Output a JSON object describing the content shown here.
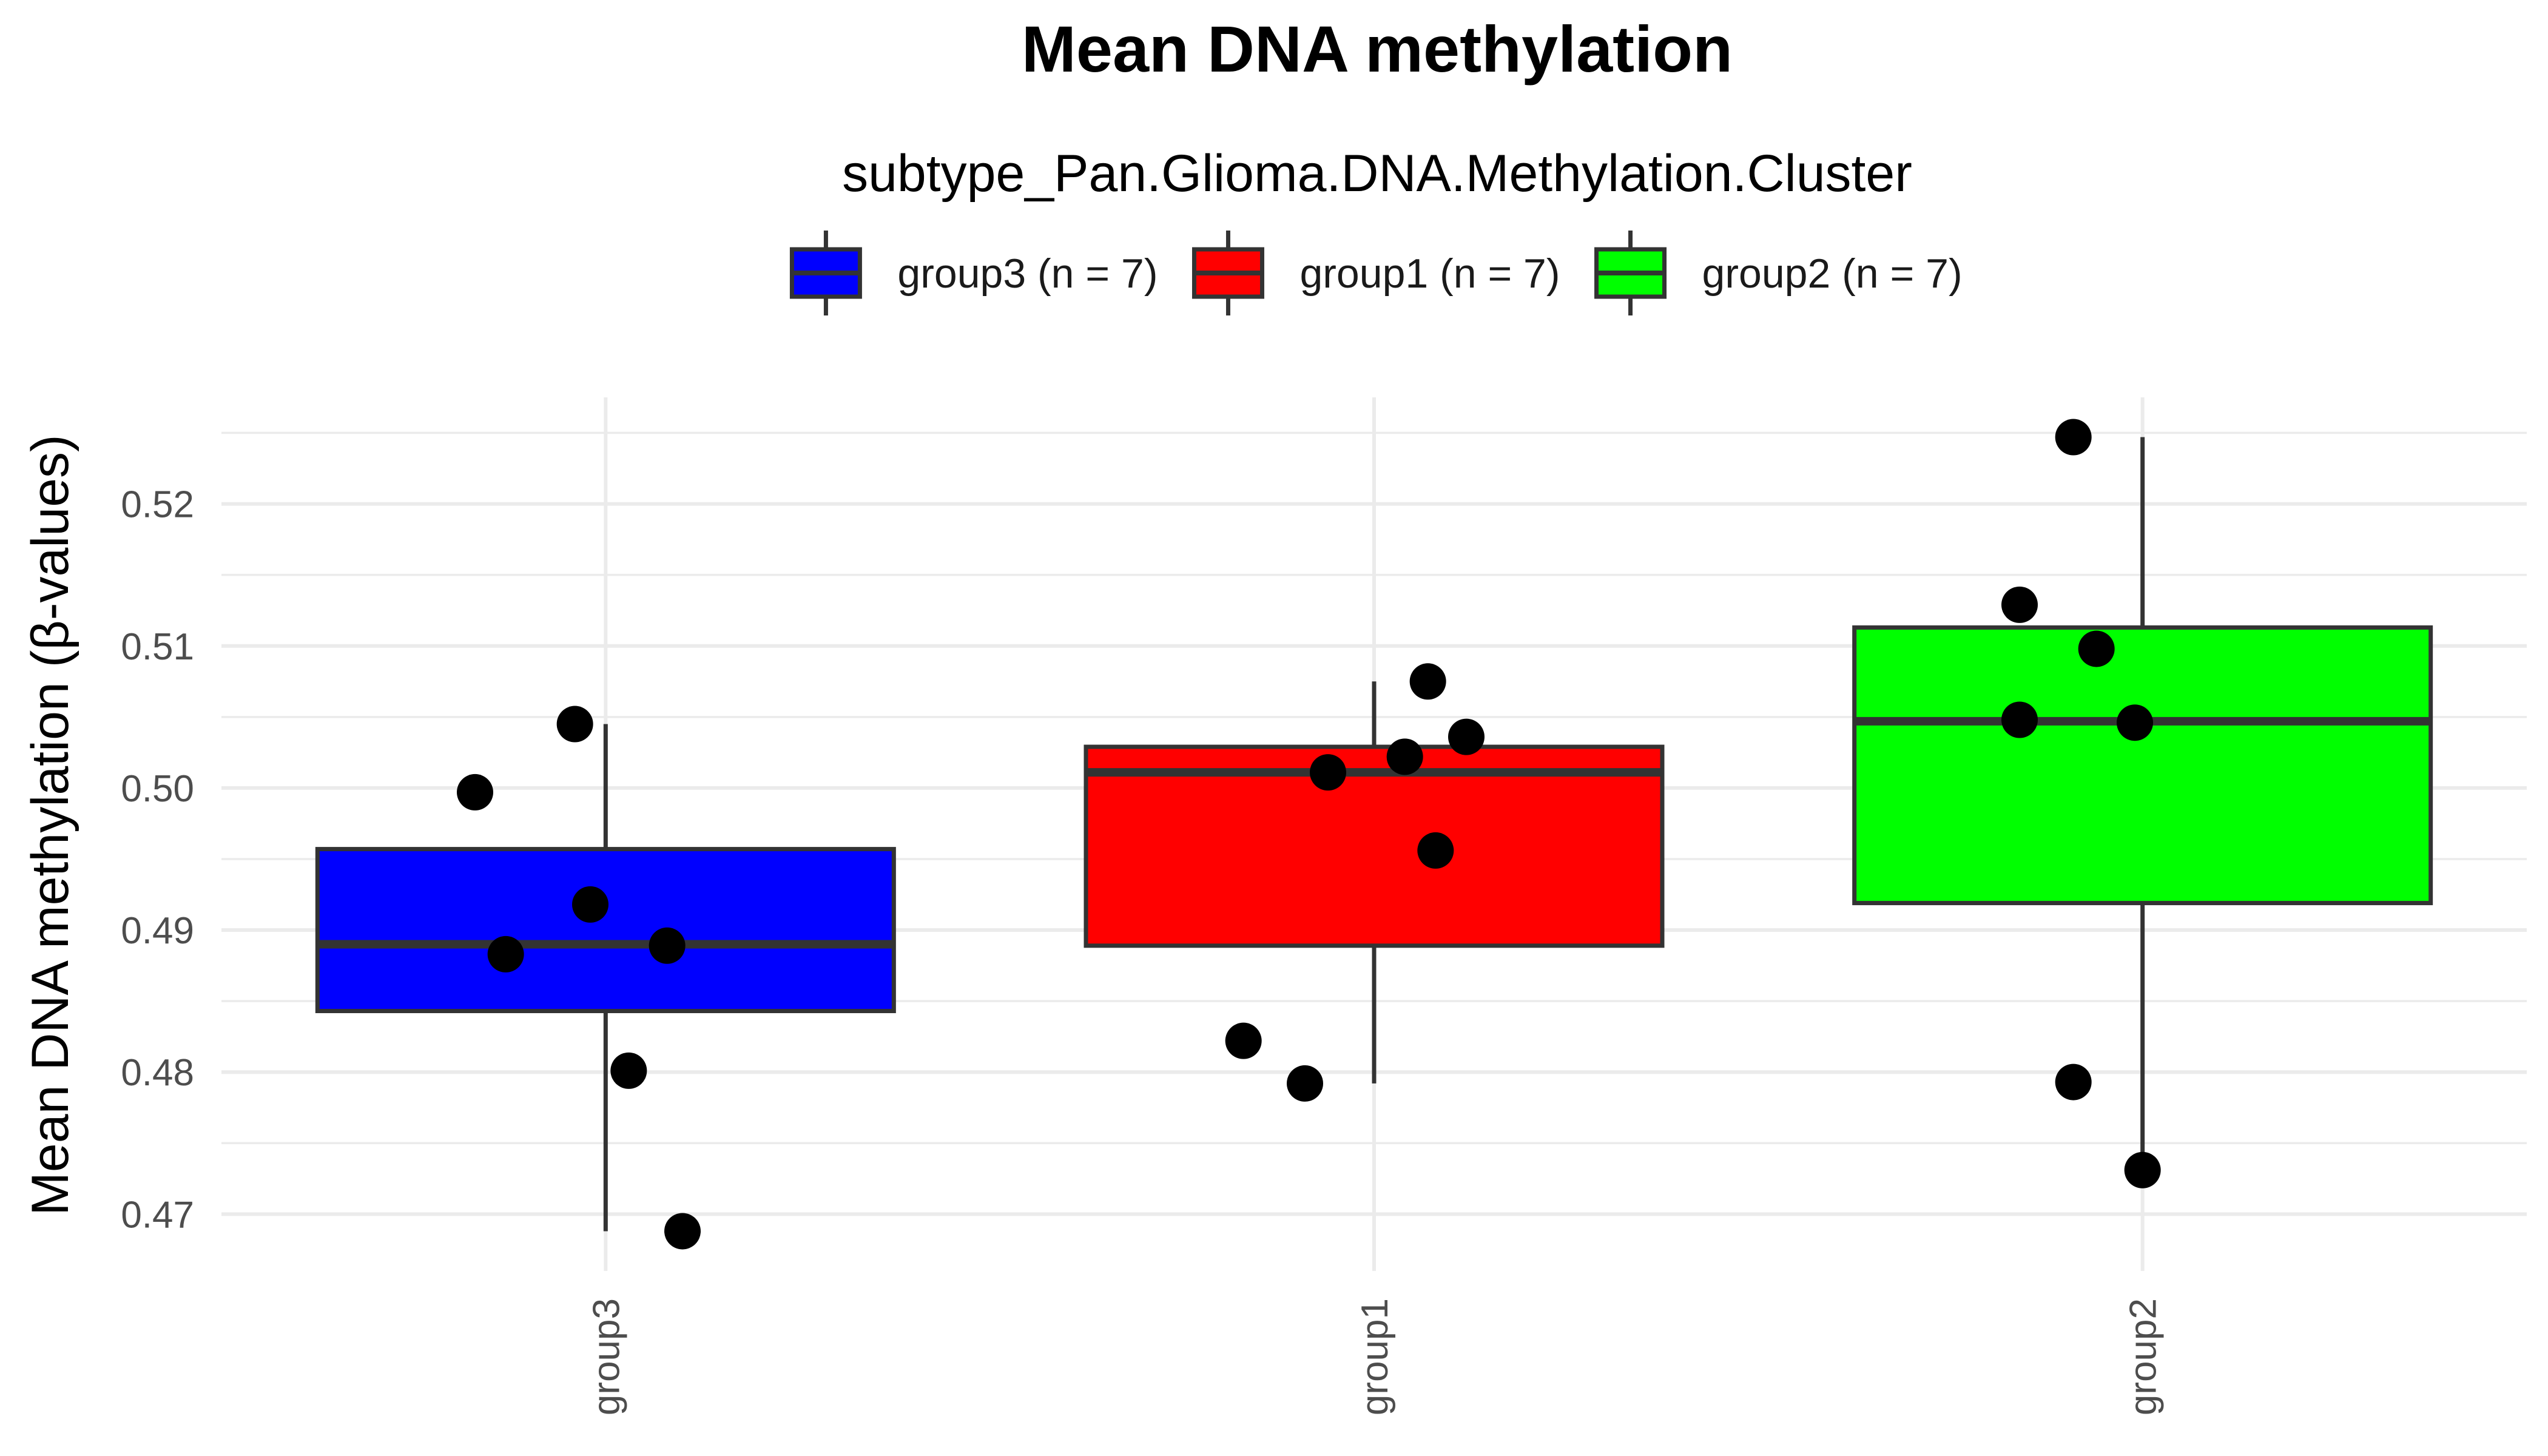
{
  "chart_data": {
    "type": "box",
    "title": "Mean DNA methylation",
    "xlabel": "",
    "ylabel": "Mean DNA methylation (β-values)",
    "ylim": [
      0.466,
      0.5275
    ],
    "yticks": [
      0.47,
      0.48,
      0.49,
      0.5,
      0.51,
      0.52
    ],
    "ytick_labels": [
      "0.47",
      "0.48",
      "0.49",
      "0.50",
      "0.51",
      "0.52"
    ],
    "legend": {
      "title": "subtype_Pan.Glioma.DNA.Methylation.Cluster",
      "position": "top",
      "entries": [
        "group3 (n = 7)",
        "group1 (n = 7)",
        "group2 (n = 7)"
      ]
    },
    "categories": [
      "group3",
      "group1",
      "group2"
    ],
    "colors": [
      "#0000ff",
      "#ff0000",
      "#00ff00"
    ],
    "boxes": [
      {
        "name": "group3",
        "q1": 0.4843,
        "median": 0.489,
        "q3": 0.4957,
        "whisker_low": 0.4688,
        "whisker_high": 0.5045
      },
      {
        "name": "group1",
        "q1": 0.4889,
        "median": 0.5011,
        "q3": 0.5029,
        "whisker_low": 0.4792,
        "whisker_high": 0.5075
      },
      {
        "name": "group2",
        "q1": 0.4919,
        "median": 0.5047,
        "q3": 0.5113,
        "whisker_low": 0.4731,
        "whisker_high": 0.5247
      }
    ],
    "points": [
      {
        "group": "group3",
        "values": [
          0.5045,
          0.4997,
          0.4918,
          0.4883,
          0.4889,
          0.4801,
          0.4688
        ],
        "jitter": [
          -0.04,
          -0.17,
          -0.02,
          -0.13,
          0.08,
          0.03,
          0.1
        ]
      },
      {
        "group": "group1",
        "values": [
          0.5075,
          0.5036,
          0.5022,
          0.5011,
          0.4956,
          0.4822,
          0.4792
        ],
        "jitter": [
          0.07,
          0.12,
          0.04,
          -0.06,
          0.08,
          -0.17,
          -0.09
        ]
      },
      {
        "group": "group2",
        "values": [
          0.5247,
          0.5129,
          0.5098,
          0.5048,
          0.5046,
          0.4793,
          0.4731
        ],
        "jitter": [
          -0.09,
          -0.16,
          -0.06,
          -0.16,
          -0.01,
          -0.09,
          0.0
        ]
      }
    ]
  }
}
